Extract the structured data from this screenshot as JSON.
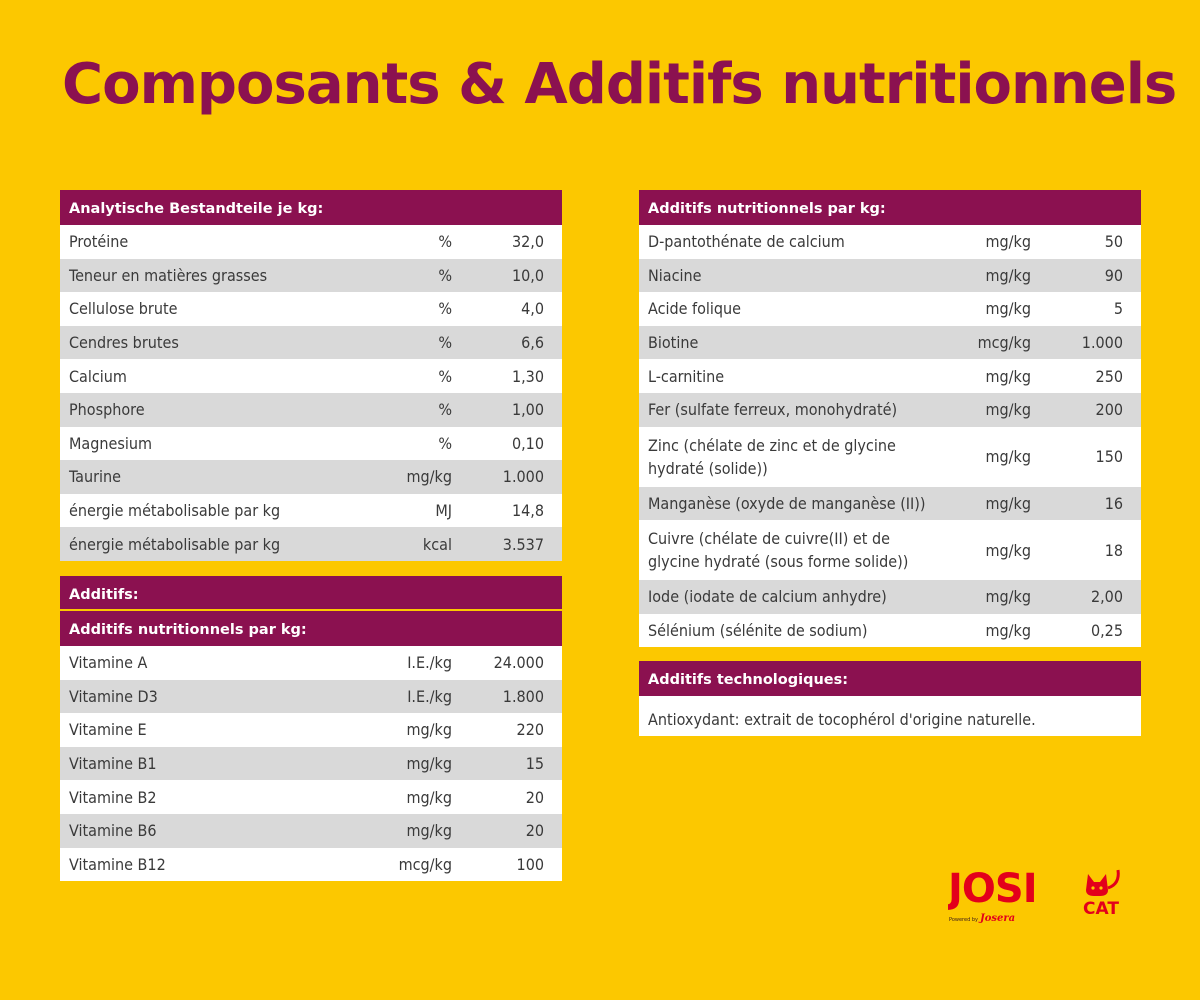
{
  "title": "Composants & Additifs nutritionnels",
  "left": {
    "analytic_header": "Analytische Bestandteile je kg:",
    "analytic_rows": [
      {
        "name": "Protéine",
        "unit": "%",
        "value": "32,0"
      },
      {
        "name": "Teneur en matières grasses",
        "unit": "%",
        "value": "10,0"
      },
      {
        "name": "Cellulose brute",
        "unit": "%",
        "value": "4,0"
      },
      {
        "name": "Cendres brutes",
        "unit": "%",
        "value": "6,6"
      },
      {
        "name": "Calcium",
        "unit": "%",
        "value": "1,30"
      },
      {
        "name": "Phosphore",
        "unit": "%",
        "value": "1,00"
      },
      {
        "name": "Magnesium",
        "unit": "%",
        "value": "0,10"
      },
      {
        "name": "Taurine",
        "unit": "mg/kg",
        "value": "1.000"
      },
      {
        "name": "énergie métabolisable par kg",
        "unit": "MJ",
        "value": "14,8"
      },
      {
        "name": "énergie métabolisable par kg",
        "unit": "kcal",
        "value": "3.537"
      }
    ],
    "additifs_header": "Additifs:",
    "vitamins_header": "Additifs nutritionnels par kg:",
    "vitamin_rows": [
      {
        "name": "Vitamine A",
        "unit": "I.E./kg",
        "value": "24.000"
      },
      {
        "name": "Vitamine D3",
        "unit": "I.E./kg",
        "value": "1.800"
      },
      {
        "name": "Vitamine E",
        "unit": "mg/kg",
        "value": "220"
      },
      {
        "name": "Vitamine B1",
        "unit": "mg/kg",
        "value": "15"
      },
      {
        "name": "Vitamine B2",
        "unit": "mg/kg",
        "value": "20"
      },
      {
        "name": "Vitamine B6",
        "unit": "mg/kg",
        "value": "20"
      },
      {
        "name": "Vitamine B12",
        "unit": "mcg/kg",
        "value": "100"
      }
    ]
  },
  "right": {
    "nutri_header": "Additifs nutritionnels par kg:",
    "nutri_rows": [
      {
        "name": "D-pantothénate de calcium",
        "unit": "mg/kg",
        "value": "50"
      },
      {
        "name": "Niacine",
        "unit": "mg/kg",
        "value": "90"
      },
      {
        "name": "Acide folique",
        "unit": "mg/kg",
        "value": "5"
      },
      {
        "name": "Biotine",
        "unit": "mcg/kg",
        "value": "1.000"
      },
      {
        "name": "L-carnitine",
        "unit": "mg/kg",
        "value": "250"
      },
      {
        "name": "Fer (sulfate ferreux, monohydraté)",
        "unit": "mg/kg",
        "value": "200"
      },
      {
        "name": "Zinc (chélate de zinc et de glycine",
        "name2": "hydraté (solide))",
        "unit": "mg/kg",
        "value": "150"
      },
      {
        "name": "Manganèse (oxyde de manganèse (II))",
        "unit": "mg/kg",
        "value": "16"
      },
      {
        "name": "Cuivre (chélate de cuivre(II) et de",
        "name2": "glycine hydraté (sous forme solide))",
        "unit": "mg/kg",
        "value": "18"
      },
      {
        "name": "Iode (iodate de calcium anhydre)",
        "unit": "mg/kg",
        "value": "2,00"
      },
      {
        "name": "Sélénium (sélénite de sodium)",
        "unit": "mg/kg",
        "value": "0,25"
      }
    ],
    "tech_header": "Additifs technologiques:",
    "tech_text": "Antioxydant: extrait de tocophérol d'origine naturelle."
  },
  "logo": {
    "brand": "JOSI",
    "brand_suffix": "CAT",
    "powered": "Powered by",
    "parent": "Josera",
    "icon": "cat-silhouette-icon",
    "colors": {
      "red": "#e3001b",
      "bg": "#fcc800",
      "accent": "#8b1150"
    }
  }
}
